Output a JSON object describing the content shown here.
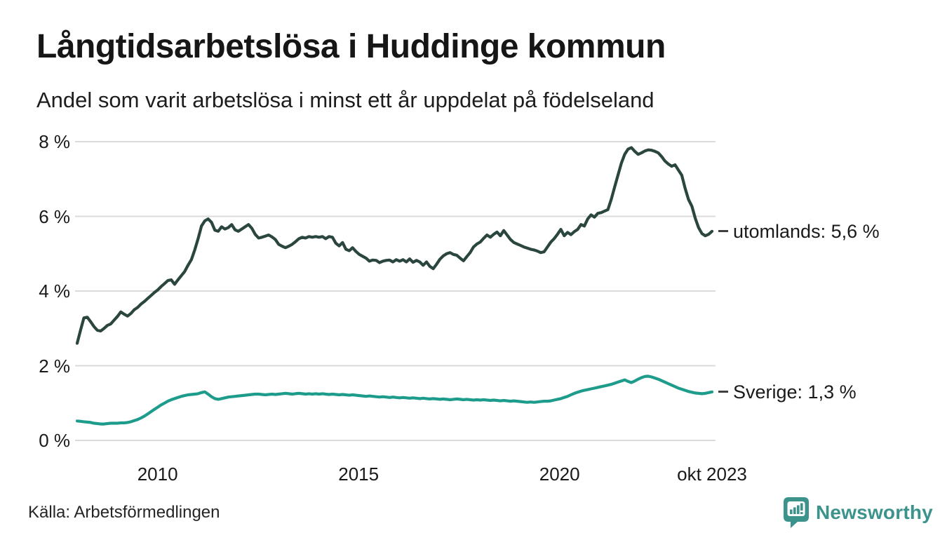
{
  "header": {
    "title": "Långtidsarbetslösa i Huddinge kommun",
    "subtitle": "Andel som varit arbetslösa i minst ett år uppdelat på födelseland"
  },
  "footer": {
    "source": "Källa: Arbetsförmedlingen",
    "brand": "Newsworthy"
  },
  "colors": {
    "utomlands_line": "#2B463F",
    "sverige_line": "#1E9C8B",
    "gridline": "#DBDBDB",
    "text": "#1A1A1A",
    "label_dash": "#3F3F3F",
    "brand_teal": "#3B938C"
  },
  "chart_data": {
    "type": "line",
    "title": "Långtidsarbetslösa i Huddinge kommun",
    "subtitle": "Andel som varit arbetslösa i minst ett år uppdelat på födelseland",
    "unit": "%",
    "frequency": "monthly",
    "x_start": "2008-01",
    "x_end": "2023-10",
    "x_domain": [
      2008.0,
      2023.7917
    ],
    "ylim": [
      0,
      8
    ],
    "grid": "horizontal",
    "legend_position": "end-of-line",
    "y_ticks": [
      {
        "value": 0,
        "label": "0 %"
      },
      {
        "value": 2,
        "label": "2 %"
      },
      {
        "value": 4,
        "label": "4 %"
      },
      {
        "value": 6,
        "label": "6 %"
      },
      {
        "value": 8,
        "label": "8 %"
      }
    ],
    "x_ticks": [
      {
        "pos": 2010.0,
        "label": "2010"
      },
      {
        "pos": 2015.0,
        "label": "2015"
      },
      {
        "pos": 2020.0,
        "label": "2020"
      },
      {
        "pos": 2023.7917,
        "label": "okt 2023"
      }
    ],
    "series": [
      {
        "name": "utomlands",
        "label": "utomlands: 5,6 %",
        "end_value": 5.6,
        "color": "#2B463F",
        "values": [
          2.6,
          2.95,
          3.28,
          3.3,
          3.18,
          3.05,
          2.95,
          2.93,
          3.0,
          3.08,
          3.12,
          3.22,
          3.32,
          3.44,
          3.38,
          3.33,
          3.4,
          3.5,
          3.56,
          3.65,
          3.72,
          3.8,
          3.88,
          3.96,
          4.03,
          4.12,
          4.2,
          4.28,
          4.3,
          4.18,
          4.3,
          4.41,
          4.52,
          4.69,
          4.84,
          5.1,
          5.4,
          5.74,
          5.88,
          5.93,
          5.84,
          5.63,
          5.6,
          5.72,
          5.66,
          5.7,
          5.78,
          5.64,
          5.6,
          5.66,
          5.72,
          5.78,
          5.68,
          5.52,
          5.42,
          5.44,
          5.47,
          5.5,
          5.45,
          5.38,
          5.25,
          5.2,
          5.16,
          5.2,
          5.25,
          5.32,
          5.4,
          5.44,
          5.42,
          5.46,
          5.44,
          5.46,
          5.44,
          5.46,
          5.4,
          5.46,
          5.44,
          5.28,
          5.21,
          5.3,
          5.12,
          5.08,
          5.16,
          5.06,
          4.98,
          4.93,
          4.88,
          4.8,
          4.83,
          4.82,
          4.76,
          4.8,
          4.82,
          4.83,
          4.78,
          4.84,
          4.8,
          4.84,
          4.78,
          4.86,
          4.77,
          4.82,
          4.78,
          4.69,
          4.78,
          4.66,
          4.6,
          4.72,
          4.85,
          4.94,
          5.0,
          5.03,
          4.98,
          4.96,
          4.88,
          4.81,
          4.92,
          5.03,
          5.18,
          5.26,
          5.31,
          5.41,
          5.5,
          5.44,
          5.52,
          5.58,
          5.48,
          5.62,
          5.5,
          5.38,
          5.3,
          5.26,
          5.22,
          5.18,
          5.15,
          5.12,
          5.1,
          5.07,
          5.03,
          5.05,
          5.18,
          5.31,
          5.4,
          5.52,
          5.65,
          5.48,
          5.57,
          5.51,
          5.59,
          5.65,
          5.78,
          5.74,
          5.93,
          6.04,
          5.98,
          6.08,
          6.1,
          6.14,
          6.18,
          6.45,
          6.78,
          7.1,
          7.42,
          7.66,
          7.8,
          7.84,
          7.74,
          7.66,
          7.7,
          7.75,
          7.78,
          7.77,
          7.74,
          7.7,
          7.6,
          7.48,
          7.4,
          7.34,
          7.38,
          7.24,
          7.1,
          6.75,
          6.45,
          6.27,
          5.95,
          5.7,
          5.54,
          5.48,
          5.52,
          5.6
        ]
      },
      {
        "name": "Sverige",
        "label": "Sverige: 1,3 %",
        "end_value": 1.3,
        "color": "#1E9C8B",
        "values": [
          0.52,
          0.51,
          0.5,
          0.49,
          0.48,
          0.46,
          0.45,
          0.44,
          0.44,
          0.45,
          0.46,
          0.46,
          0.46,
          0.47,
          0.47,
          0.48,
          0.5,
          0.53,
          0.56,
          0.6,
          0.65,
          0.71,
          0.77,
          0.83,
          0.89,
          0.95,
          1.0,
          1.05,
          1.09,
          1.12,
          1.15,
          1.18,
          1.2,
          1.22,
          1.23,
          1.24,
          1.25,
          1.28,
          1.3,
          1.24,
          1.17,
          1.12,
          1.1,
          1.12,
          1.14,
          1.16,
          1.17,
          1.18,
          1.19,
          1.2,
          1.21,
          1.22,
          1.23,
          1.24,
          1.24,
          1.23,
          1.22,
          1.23,
          1.24,
          1.23,
          1.24,
          1.25,
          1.26,
          1.25,
          1.24,
          1.25,
          1.26,
          1.25,
          1.24,
          1.25,
          1.24,
          1.25,
          1.24,
          1.25,
          1.24,
          1.23,
          1.24,
          1.23,
          1.22,
          1.23,
          1.22,
          1.21,
          1.22,
          1.21,
          1.2,
          1.19,
          1.18,
          1.19,
          1.18,
          1.17,
          1.16,
          1.17,
          1.16,
          1.15,
          1.16,
          1.15,
          1.14,
          1.15,
          1.14,
          1.13,
          1.14,
          1.13,
          1.12,
          1.13,
          1.12,
          1.11,
          1.12,
          1.11,
          1.1,
          1.11,
          1.1,
          1.09,
          1.1,
          1.11,
          1.1,
          1.09,
          1.1,
          1.09,
          1.08,
          1.09,
          1.08,
          1.09,
          1.08,
          1.07,
          1.08,
          1.07,
          1.06,
          1.07,
          1.06,
          1.05,
          1.06,
          1.05,
          1.04,
          1.03,
          1.02,
          1.03,
          1.02,
          1.03,
          1.04,
          1.05,
          1.05,
          1.06,
          1.08,
          1.1,
          1.12,
          1.15,
          1.18,
          1.22,
          1.26,
          1.29,
          1.32,
          1.34,
          1.36,
          1.38,
          1.4,
          1.42,
          1.44,
          1.46,
          1.48,
          1.5,
          1.53,
          1.56,
          1.59,
          1.62,
          1.58,
          1.55,
          1.59,
          1.64,
          1.68,
          1.71,
          1.72,
          1.7,
          1.67,
          1.64,
          1.6,
          1.56,
          1.52,
          1.48,
          1.44,
          1.4,
          1.37,
          1.34,
          1.31,
          1.29,
          1.27,
          1.26,
          1.25,
          1.26,
          1.28,
          1.3
        ]
      }
    ]
  }
}
